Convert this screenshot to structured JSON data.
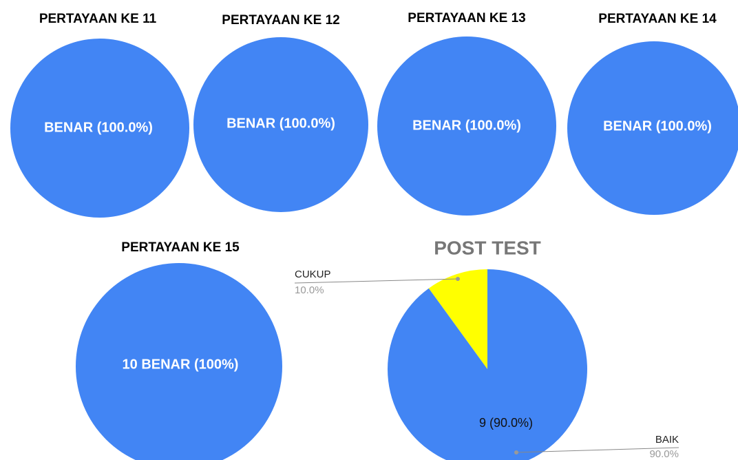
{
  "chart_data": [
    {
      "type": "pie",
      "title": "PERTAYAAN KE 11",
      "values": [
        100
      ],
      "value_labels": [
        "BENAR (100.0%)"
      ],
      "colors": [
        "#4285f4"
      ]
    },
    {
      "type": "pie",
      "title": "PERTAYAAN KE 12",
      "values": [
        100
      ],
      "value_labels": [
        "BENAR (100.0%)"
      ],
      "colors": [
        "#4285f4"
      ]
    },
    {
      "type": "pie",
      "title": "PERTAYAAN KE 13",
      "values": [
        100
      ],
      "value_labels": [
        "BENAR (100.0%)"
      ],
      "colors": [
        "#4285f4"
      ]
    },
    {
      "type": "pie",
      "title": "PERTAYAAN KE 14",
      "values": [
        100
      ],
      "value_labels": [
        "BENAR (100.0%)"
      ],
      "colors": [
        "#4285f4"
      ]
    },
    {
      "type": "pie",
      "title": "PERTAYAAN KE 15",
      "values": [
        100
      ],
      "value_labels": [
        "10 BENAR (100%)"
      ],
      "colors": [
        "#4285f4"
      ]
    },
    {
      "type": "pie",
      "title": "POST TEST",
      "categories": [
        "CUKUP",
        "BAIK"
      ],
      "values": [
        10,
        90
      ],
      "value_labels": [
        "10.0%",
        "90.0%"
      ],
      "inner_labels": [
        null,
        "9 (90.0%)"
      ],
      "colors": [
        "#ffff00",
        "#4285f4"
      ]
    }
  ]
}
